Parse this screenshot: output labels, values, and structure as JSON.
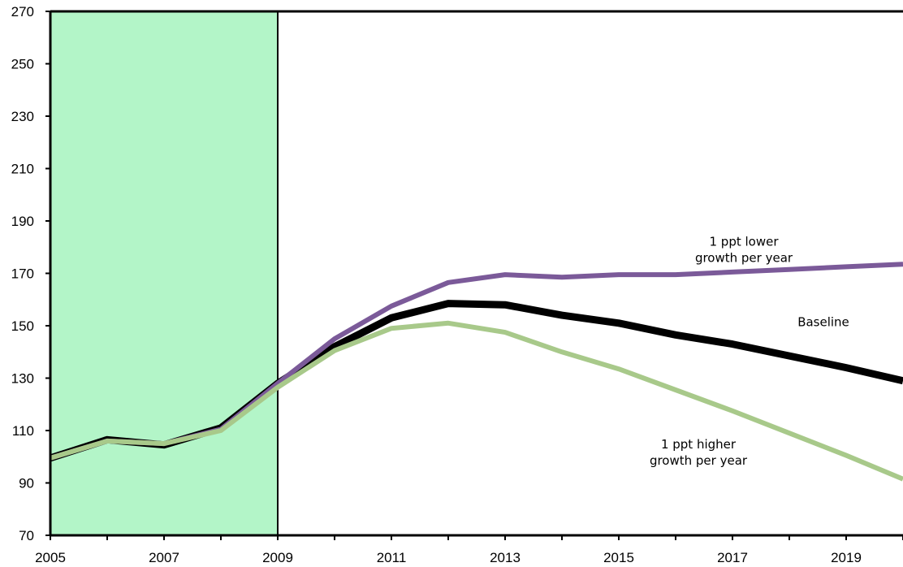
{
  "chart_data": {
    "type": "line",
    "title": "",
    "xlabel": "",
    "ylabel": "",
    "xlim": [
      2005,
      2020
    ],
    "ylim": [
      70,
      270
    ],
    "x_ticks": [
      2005,
      2007,
      2009,
      2011,
      2013,
      2015,
      2017,
      2019
    ],
    "y_ticks": [
      70,
      90,
      110,
      130,
      150,
      170,
      190,
      210,
      230,
      250,
      270
    ],
    "grid": false,
    "shaded_region": {
      "x_from": 2005,
      "x_to": 2009,
      "color": "#b3f5c8"
    },
    "x": [
      2005,
      2006,
      2007,
      2008,
      2009,
      2010,
      2011,
      2012,
      2013,
      2014,
      2015,
      2016,
      2017,
      2018,
      2019,
      2020
    ],
    "series": [
      {
        "color": "#000000",
        "values": [
          99.5,
          106.5,
          104.5,
          111,
          128,
          142,
          153,
          158.5,
          158,
          154,
          151,
          146.5,
          143,
          138.5,
          134,
          129
        ]
      },
      {
        "color": "#7b5a99",
        "values": [
          99.5,
          106,
          105,
          110.5,
          128,
          145,
          157.5,
          166.5,
          169.5,
          168.5,
          169.5,
          169.5,
          170.5,
          171.5,
          172.5,
          173.5
        ]
      },
      {
        "color": "#a8c98a",
        "values": [
          99.5,
          106,
          105,
          110,
          126.5,
          140.5,
          149,
          151,
          147.5,
          140,
          133.5,
          125.5,
          117.5,
          109,
          100.5,
          91.5
        ]
      }
    ],
    "annotations": [
      {
        "lines": [
          "1 ppt lower",
          "growth per year"
        ],
        "x": 2017.2,
        "y": 180.5
      },
      {
        "lines": [
          "Baseline"
        ],
        "x": 2018.6,
        "y": 149.8
      },
      {
        "lines": [
          "1 ppt higher",
          "growth per year"
        ],
        "x": 2016.4,
        "y": 103.2
      }
    ]
  }
}
